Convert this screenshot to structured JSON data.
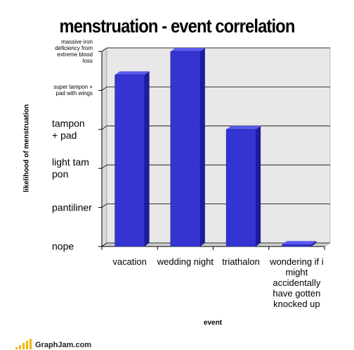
{
  "chart_data": {
    "type": "bar",
    "title": "menstruation - event correlation",
    "xlabel": "event",
    "ylabel": "likelihood of menstruation",
    "categories": [
      "vacation",
      "wedding night",
      "triathalon",
      "wondering if i might accidentally have gotten knocked up"
    ],
    "values": [
      4.4,
      5,
      3,
      0.05
    ],
    "color": "#3434d2",
    "ylim": [
      0,
      5
    ],
    "yticks": [
      {
        "value": 0,
        "label": "nope"
      },
      {
        "value": 1,
        "label": "pantiliner"
      },
      {
        "value": 2,
        "label": "light tampon"
      },
      {
        "value": 3,
        "label": "tampon + pad"
      },
      {
        "value": 4,
        "label": "super tampon + pad with wings"
      },
      {
        "value": 5,
        "label": "massive iron deficiency from extreme blood loss"
      }
    ],
    "grid": true
  },
  "footer": {
    "site": "GraphJam.com"
  }
}
